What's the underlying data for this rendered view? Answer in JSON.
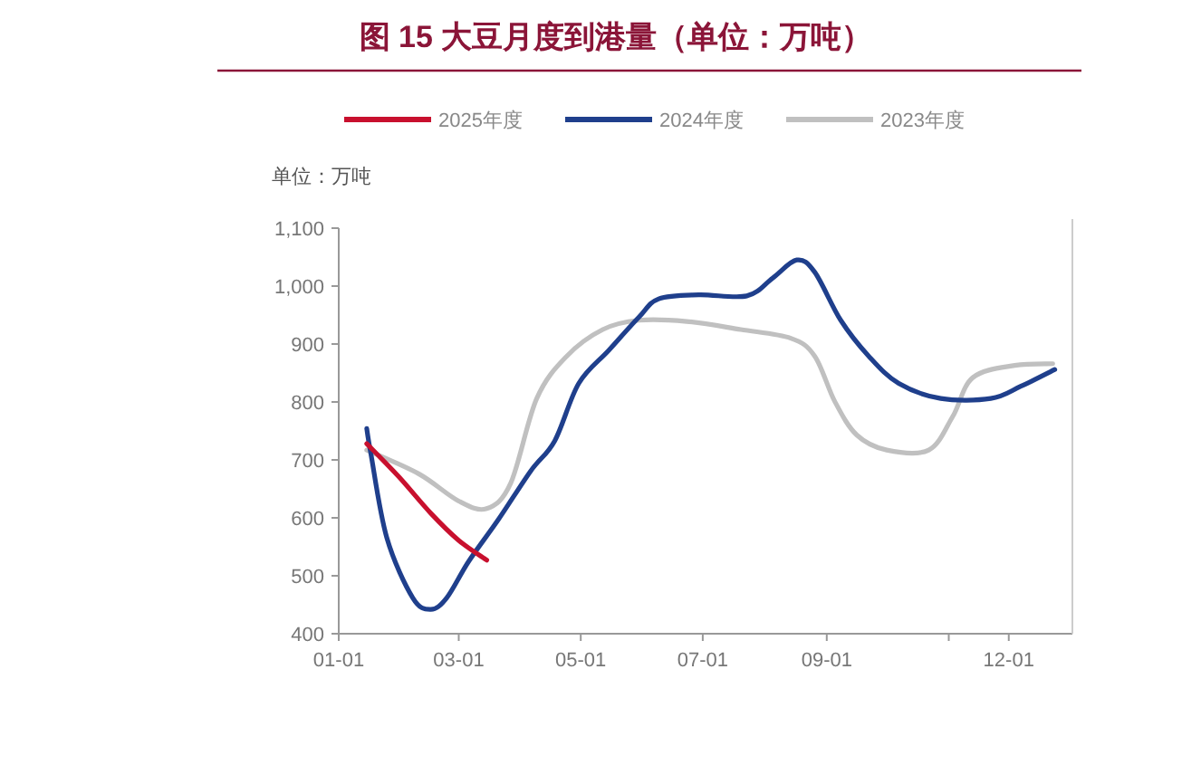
{
  "chart_data": {
    "type": "line",
    "title": "图 15 大豆月度到港量（单位：万吨）",
    "annotations": [
      "单位：万吨"
    ],
    "legend": "top",
    "xlim": [
      "--01-01",
      "--12-31"
    ],
    "xticks": [
      {
        "value": "--01-01",
        "label": "01-01"
      },
      {
        "value": "--03-01",
        "label": "03-01"
      },
      {
        "value": "--05-01",
        "label": "05-01"
      },
      {
        "value": "--07-01",
        "label": "07-01"
      },
      {
        "value": "--09-01",
        "label": "09-01"
      },
      {
        "value": "--11-01",
        "label": null
      },
      {
        "value": "--12-01",
        "label": "12-01"
      }
    ],
    "ylim": [
      400,
      1100
    ],
    "yticks": [
      400,
      500,
      600,
      700,
      800,
      900,
      {
        "value": 1000,
        "label": "1,000"
      },
      {
        "value": 1100,
        "label": "1,100"
      }
    ],
    "series": [
      {
        "name": "2025年度",
        "color": "#c8102e",
        "x": [
          "--01-15",
          "--01-31",
          "--02-16",
          "--03-01",
          "--03-15"
        ],
        "values": [
          728,
          671,
          608,
          561,
          527
        ]
      },
      {
        "name": "2024年度",
        "color": "#1f3f8c",
        "x": [
          "--01-15",
          "--01-17",
          "--01-25",
          "--02-07",
          "--02-16",
          "--02-24",
          "--03-06",
          "--03-21",
          "--04-06",
          "--04-18",
          "--04-30",
          "--05-15",
          "--05-30",
          "--06-09",
          "--06-29",
          "--07-23",
          "--08-05",
          "--08-17",
          "--08-26",
          "--09-08",
          "--09-22",
          "--10-07",
          "--10-28",
          "--11-22",
          "--12-07",
          "--12-24"
        ],
        "values": [
          754,
          712,
          566,
          462,
          442,
          462,
          525,
          598,
          681,
          733,
          832,
          889,
          946,
          978,
          985,
          983,
          1014,
          1045,
          1024,
          941,
          879,
          832,
          806,
          806,
          827,
          856
        ]
      },
      {
        "name": "2023年度",
        "color": "#c0c0c0",
        "x": [
          "--01-15",
          "--02-10",
          "--03-01",
          "--03-15",
          "--03-27",
          "--04-09",
          "--04-24",
          "--05-12",
          "--05-30",
          "--06-23",
          "--07-20",
          "--08-14",
          "--08-26",
          "--09-05",
          "--09-16",
          "--10-01",
          "--10-22",
          "--11-03",
          "--11-13",
          "--12-04",
          "--12-23"
        ],
        "values": [
          717,
          676,
          629,
          616,
          660,
          806,
          879,
          925,
          941,
          939,
          925,
          910,
          879,
          801,
          743,
          717,
          717,
          775,
          842,
          863,
          866
        ]
      }
    ]
  }
}
